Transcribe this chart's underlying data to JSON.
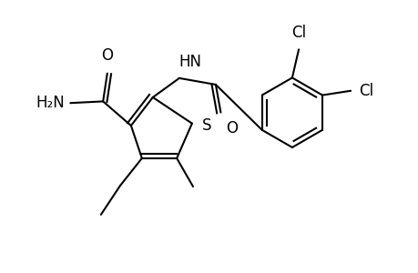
{
  "background_color": "#ffffff",
  "line_color": "#000000",
  "line_width": 1.5,
  "font_size": 11,
  "fig_width": 4.6,
  "fig_height": 3.0,
  "dpi": 100,
  "xlim": [
    0,
    9.5
  ],
  "ylim": [
    0,
    6.0
  ]
}
